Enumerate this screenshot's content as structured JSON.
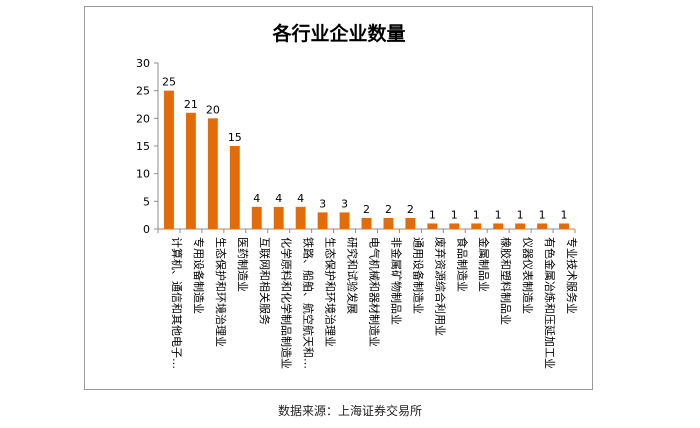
{
  "chart_data": {
    "type": "bar",
    "title": "各行业企业数量",
    "categories": [
      "计算机、通信和其他电子…",
      "专用设备制造业",
      "生态保护和环境治理业",
      "医药制造业",
      "互联网和相关服务",
      "化学原料和化学制品制造业",
      "铁路、船舶、航空航天和…",
      "生态保护和环境治理业",
      "研究和试验发展",
      "电气机械和器材制造业",
      "非金属矿物制品业",
      "通用设备制造业",
      "废弃资源综合利用业",
      "食品制造业",
      "金属制品业",
      "橡胶和塑料制品业",
      "仪器仪表制造业",
      "有色金属冶炼和压延加工业",
      "专业技术服务业"
    ],
    "values": [
      25,
      21,
      20,
      15,
      4,
      4,
      4,
      3,
      3,
      2,
      2,
      2,
      1,
      1,
      1,
      1,
      1,
      1,
      1
    ],
    "ylim": [
      0,
      30
    ],
    "yticks": [
      0,
      5,
      10,
      15,
      20,
      25,
      30
    ],
    "grid": false,
    "legend": "none",
    "bar_color": "#E36C0A"
  },
  "source_note": "数据来源：上海证券交易所"
}
